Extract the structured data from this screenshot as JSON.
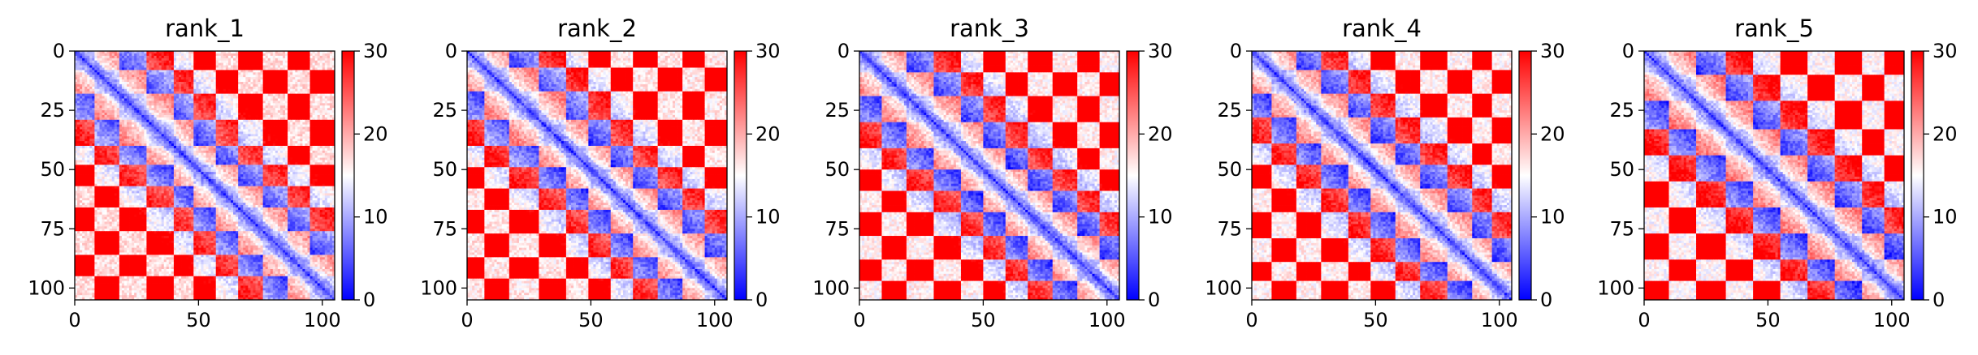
{
  "chart_data": [
    {
      "type": "heatmap",
      "title": "rank_1",
      "x_ticks": [
        0,
        50,
        100
      ],
      "y_ticks": [
        0,
        25,
        50,
        75,
        100
      ],
      "xlim": [
        0,
        105
      ],
      "ylim": [
        105,
        0
      ],
      "colorbar": {
        "min": 0,
        "max": 30,
        "ticks": [
          0,
          10,
          20,
          30
        ],
        "colormap": "bwr"
      },
      "pattern": {
        "size": 105,
        "segment_boundaries": [
          0,
          8,
          18,
          29,
          40,
          48,
          57,
          66,
          76,
          86,
          95,
          105
        ],
        "contrast": 1.0
      }
    },
    {
      "type": "heatmap",
      "title": "rank_2",
      "x_ticks": [
        0,
        50,
        100
      ],
      "y_ticks": [
        0,
        25,
        50,
        75,
        100
      ],
      "xlim": [
        0,
        105
      ],
      "ylim": [
        105,
        0
      ],
      "colorbar": {
        "min": 0,
        "max": 30,
        "ticks": [
          0,
          10,
          20,
          30
        ],
        "colormap": "bwr"
      },
      "pattern": {
        "size": 105,
        "segment_boundaries": [
          0,
          7,
          17,
          29,
          40,
          49,
          58,
          67,
          77,
          87,
          96,
          105
        ],
        "contrast": 1.05
      }
    },
    {
      "type": "heatmap",
      "title": "rank_3",
      "x_ticks": [
        0,
        50,
        100
      ],
      "y_ticks": [
        0,
        25,
        50,
        75,
        100
      ],
      "xlim": [
        0,
        105
      ],
      "ylim": [
        105,
        0
      ],
      "colorbar": {
        "min": 0,
        "max": 30,
        "ticks": [
          0,
          10,
          20,
          30
        ],
        "colormap": "bwr"
      },
      "pattern": {
        "size": 105,
        "segment_boundaries": [
          0,
          9,
          19,
          30,
          41,
          50,
          59,
          68,
          78,
          88,
          97,
          105
        ],
        "contrast": 1.1
      }
    },
    {
      "type": "heatmap",
      "title": "rank_4",
      "x_ticks": [
        0,
        50,
        100
      ],
      "y_ticks": [
        0,
        25,
        50,
        75,
        100
      ],
      "xlim": [
        0,
        105
      ],
      "ylim": [
        105,
        0
      ],
      "colorbar": {
        "min": 0,
        "max": 30,
        "ticks": [
          0,
          10,
          20,
          30
        ],
        "colormap": "bwr"
      },
      "pattern": {
        "size": 105,
        "segment_boundaries": [
          0,
          8,
          18,
          28,
          39,
          48,
          58,
          68,
          79,
          89,
          97,
          105
        ],
        "contrast": 1.1
      }
    },
    {
      "type": "heatmap",
      "title": "rank_5",
      "x_ticks": [
        0,
        50,
        100
      ],
      "y_ticks": [
        0,
        25,
        50,
        75,
        100
      ],
      "xlim": [
        0,
        105
      ],
      "ylim": [
        105,
        0
      ],
      "colorbar": {
        "min": 0,
        "max": 30,
        "ticks": [
          0,
          10,
          20,
          30
        ],
        "colormap": "bwr"
      },
      "pattern": {
        "size": 105,
        "segment_boundaries": [
          0,
          10,
          21,
          33,
          44,
          55,
          66,
          77,
          88,
          97,
          105
        ],
        "contrast": 1.15
      }
    }
  ]
}
